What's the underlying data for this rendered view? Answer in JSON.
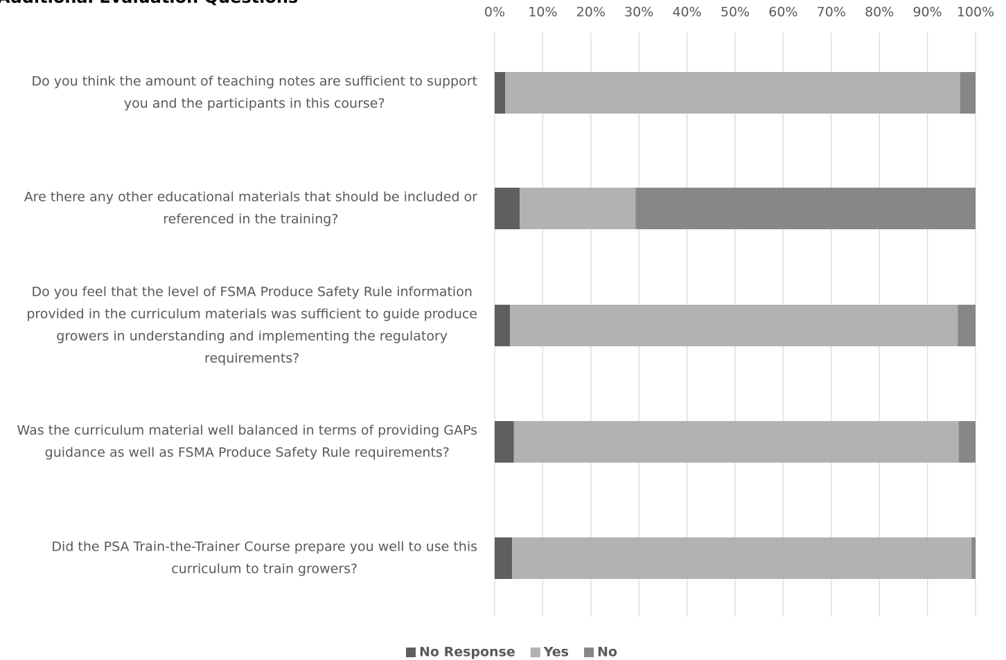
{
  "chart_data": {
    "type": "bar",
    "orientation": "horizontal",
    "stacked": "percent",
    "title": "Additional Evaluation Questions",
    "xlim": [
      0,
      100
    ],
    "x_ticks": [
      "0%",
      "10%",
      "20%",
      "30%",
      "40%",
      "50%",
      "60%",
      "70%",
      "80%",
      "90%",
      "100%"
    ],
    "grid": true,
    "legend_position": "bottom",
    "categories": [
      [
        "Do you think the amount of teaching notes are sufficient to support",
        "you and the participants in this course?"
      ],
      [
        "Are there any other educational materials that should be included or",
        "referenced in the training?"
      ],
      [
        "Do you feel that the level of FSMA Produce Safety Rule information",
        "provided in the curriculum materials was sufficient to guide produce",
        "growers in understanding and implementing the regulatory",
        "requirements?"
      ],
      [
        "Was the curriculum material well balanced in terms of providing GAPs",
        "guidance as well as FSMA Produce Safety Rule requirements?"
      ],
      [
        "Did the PSA Train-the-Trainer Course prepare you well to use this",
        "curriculum to train growers?"
      ]
    ],
    "series": [
      {
        "name": "No Response",
        "color": "#5f5f5f",
        "values": [
          2.2,
          5.2,
          3.2,
          4.0,
          3.6
        ]
      },
      {
        "name": "Yes",
        "color": "#b2b2b2",
        "values": [
          94.6,
          24.1,
          93.1,
          92.5,
          95.6
        ]
      },
      {
        "name": "No",
        "color": "#878787",
        "values": [
          3.2,
          70.7,
          3.7,
          3.5,
          0.8
        ]
      }
    ]
  }
}
